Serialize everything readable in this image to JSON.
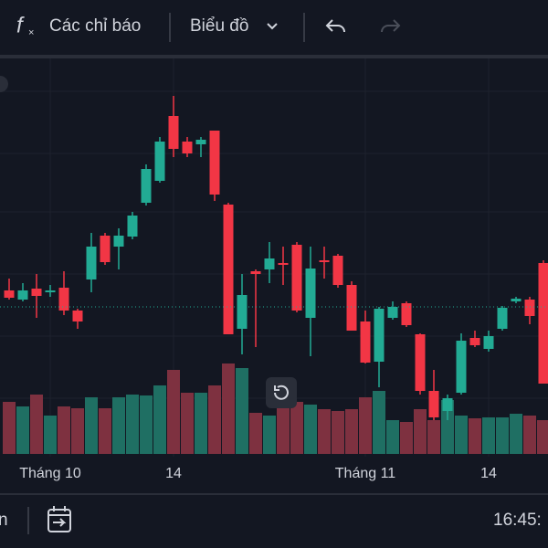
{
  "toolbar": {
    "indicators": "Các chỉ báo",
    "chart_type": "Biểu đồ"
  },
  "footer": {
    "left": "n",
    "time": "16:45:"
  },
  "chart_data": {
    "type": "candlestick",
    "categories": [
      null,
      null,
      null,
      "Tháng 10",
      null,
      null,
      null,
      null,
      null,
      null,
      null,
      null,
      "14",
      null,
      null,
      null,
      null,
      null,
      null,
      null,
      null,
      null,
      null,
      null,
      null,
      null,
      "Tháng 11",
      null,
      null,
      null,
      null,
      null,
      null,
      null,
      null,
      "14",
      null,
      null,
      null,
      null
    ],
    "open": [
      282,
      272,
      284,
      280,
      285,
      260,
      294,
      342,
      330,
      341,
      378,
      402,
      473,
      445,
      442,
      457,
      376,
      240,
      303,
      305,
      312,
      332,
      252,
      315,
      320,
      288,
      248,
      204,
      252,
      268,
      234,
      172,
      150,
      170,
      230,
      218,
      240,
      270,
      272,
      312
    ],
    "high": [
      295,
      290,
      300,
      288,
      303,
      262,
      345,
      345,
      350,
      368,
      420,
      450,
      495,
      450,
      450,
      457,
      378,
      300,
      305,
      335,
      330,
      335,
      330,
      330,
      322,
      292,
      260,
      264,
      270,
      270,
      235,
      195,
      168,
      235,
      238,
      238,
      265,
      275,
      275,
      315
    ],
    "low": [
      272,
      270,
      252,
      275,
      255,
      240,
      280,
      310,
      305,
      338,
      375,
      400,
      428,
      428,
      428,
      380,
      234,
      212,
      220,
      290,
      288,
      258,
      210,
      295,
      285,
      238,
      202,
      176,
      250,
      242,
      168,
      140,
      140,
      168,
      220,
      215,
      238,
      268,
      245,
      180
    ],
    "close": [
      274,
      282,
      276,
      282,
      260,
      248,
      330,
      313,
      342,
      364,
      415,
      445,
      437,
      432,
      447,
      387,
      234,
      277,
      300,
      317,
      310,
      260,
      306,
      313,
      288,
      238,
      203,
      262,
      264,
      244,
      172,
      143,
      164,
      227,
      222,
      232,
      263,
      273,
      254,
      180
    ],
    "volume": [
      57,
      52,
      65,
      42,
      52,
      50,
      62,
      50,
      62,
      65,
      64,
      75,
      92,
      67,
      67,
      75,
      99,
      94,
      45,
      42,
      52,
      57,
      54,
      49,
      47,
      49,
      62,
      69,
      37,
      35,
      49,
      37,
      59,
      42,
      39,
      40,
      40,
      44,
      42,
      37
    ],
    "ylim": [
      100,
      540
    ],
    "volume_lim": [
      0,
      200
    ],
    "price_line": 264,
    "up_color": "#22ab94",
    "down_color": "#f23645",
    "volume_up_color": "#1f6f63",
    "volume_down_color": "#7e3140"
  }
}
